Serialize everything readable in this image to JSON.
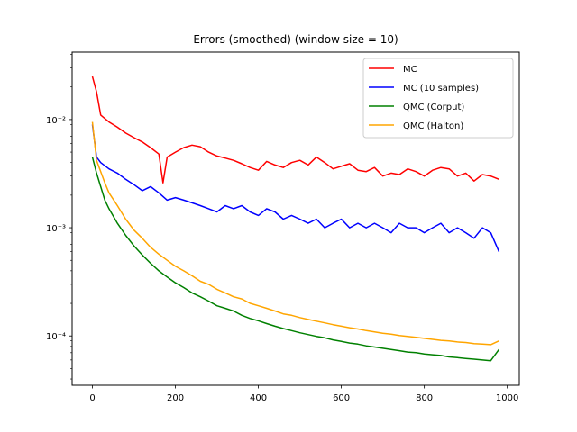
{
  "chart_data": {
    "type": "line",
    "title": "Errors (smoothed) (window size = 10)",
    "xlabel": "",
    "ylabel": "",
    "x_scale": "linear",
    "y_scale": "log",
    "xlim": [
      -49,
      1029
    ],
    "ylim": [
      3.5e-05,
      0.042
    ],
    "x_ticks": [
      0,
      200,
      400,
      600,
      800,
      1000
    ],
    "x_tick_labels": [
      "0",
      "200",
      "400",
      "600",
      "800",
      "1000"
    ],
    "y_ticks": [
      0.0001,
      0.001,
      0.01
    ],
    "y_tick_labels": [
      "10⁻⁴",
      "10⁻³",
      "10⁻²"
    ],
    "grid": false,
    "legend_position": "top-right",
    "series": [
      {
        "name": "MC",
        "color": "#ff0000",
        "x": [
          0,
          10,
          20,
          40,
          60,
          80,
          100,
          120,
          140,
          160,
          170,
          180,
          200,
          220,
          240,
          260,
          280,
          300,
          320,
          340,
          360,
          380,
          400,
          420,
          440,
          460,
          480,
          500,
          520,
          540,
          560,
          580,
          600,
          620,
          640,
          660,
          680,
          700,
          720,
          740,
          760,
          780,
          800,
          820,
          840,
          860,
          880,
          900,
          920,
          940,
          960,
          980
        ],
        "y": [
          0.025,
          0.018,
          0.011,
          0.0095,
          0.0085,
          0.0075,
          0.0068,
          0.0062,
          0.0055,
          0.0048,
          0.0026,
          0.0045,
          0.005,
          0.0055,
          0.0058,
          0.0056,
          0.005,
          0.0046,
          0.0044,
          0.0042,
          0.0039,
          0.0036,
          0.0034,
          0.0041,
          0.0038,
          0.0036,
          0.004,
          0.0042,
          0.0038,
          0.0045,
          0.004,
          0.0035,
          0.0037,
          0.0039,
          0.0034,
          0.0033,
          0.0036,
          0.003,
          0.0032,
          0.0031,
          0.0035,
          0.0033,
          0.003,
          0.0034,
          0.0036,
          0.0035,
          0.003,
          0.0032,
          0.0027,
          0.0031,
          0.003,
          0.0028
        ]
      },
      {
        "name": "MC (10 samples)",
        "color": "#0000ff",
        "x": [
          0,
          10,
          20,
          40,
          60,
          80,
          100,
          120,
          140,
          160,
          180,
          200,
          220,
          240,
          260,
          280,
          300,
          320,
          340,
          360,
          380,
          400,
          420,
          440,
          460,
          480,
          500,
          520,
          540,
          560,
          580,
          600,
          620,
          640,
          660,
          680,
          700,
          720,
          740,
          760,
          780,
          800,
          820,
          840,
          860,
          880,
          900,
          920,
          940,
          960,
          980
        ],
        "y": [
          0.009,
          0.0045,
          0.004,
          0.0035,
          0.0032,
          0.0028,
          0.0025,
          0.0022,
          0.0024,
          0.0021,
          0.0018,
          0.0019,
          0.0018,
          0.0017,
          0.0016,
          0.0015,
          0.0014,
          0.0016,
          0.0015,
          0.0016,
          0.0014,
          0.0013,
          0.0015,
          0.0014,
          0.0012,
          0.0013,
          0.0012,
          0.0011,
          0.0012,
          0.001,
          0.0011,
          0.0012,
          0.001,
          0.0011,
          0.001,
          0.0011,
          0.001,
          0.0009,
          0.0011,
          0.001,
          0.001,
          0.0009,
          0.001,
          0.0011,
          0.0009,
          0.001,
          0.0009,
          0.0008,
          0.001,
          0.0009,
          0.0006
        ]
      },
      {
        "name": "QMC (Corput)",
        "color": "#008000",
        "x": [
          0,
          10,
          20,
          30,
          40,
          60,
          80,
          100,
          120,
          140,
          160,
          180,
          200,
          220,
          240,
          260,
          280,
          300,
          320,
          340,
          360,
          380,
          400,
          420,
          440,
          460,
          480,
          500,
          520,
          540,
          560,
          580,
          600,
          620,
          640,
          660,
          680,
          700,
          720,
          740,
          760,
          780,
          800,
          820,
          840,
          860,
          880,
          900,
          920,
          940,
          960,
          980
        ],
        "y": [
          0.0045,
          0.0032,
          0.0024,
          0.0018,
          0.0015,
          0.0011,
          0.00085,
          0.00068,
          0.00056,
          0.00047,
          0.0004,
          0.00035,
          0.00031,
          0.00028,
          0.00025,
          0.00023,
          0.00021,
          0.00019,
          0.00018,
          0.00017,
          0.000155,
          0.000145,
          0.000138,
          0.00013,
          0.000123,
          0.000117,
          0.000112,
          0.000107,
          0.000103,
          9.9e-05,
          9.6e-05,
          9.2e-05,
          8.9e-05,
          8.6e-05,
          8.4e-05,
          8.1e-05,
          7.9e-05,
          7.7e-05,
          7.5e-05,
          7.3e-05,
          7.1e-05,
          7e-05,
          6.8e-05,
          6.7e-05,
          6.6e-05,
          6.4e-05,
          6.3e-05,
          6.2e-05,
          6.1e-05,
          6e-05,
          5.9e-05,
          7.5e-05
        ]
      },
      {
        "name": "QMC (Halton)",
        "color": "#ffa500",
        "x": [
          0,
          10,
          20,
          30,
          40,
          60,
          80,
          100,
          120,
          140,
          160,
          180,
          200,
          220,
          240,
          260,
          280,
          300,
          320,
          340,
          360,
          380,
          400,
          420,
          440,
          460,
          480,
          500,
          520,
          540,
          560,
          580,
          600,
          620,
          640,
          660,
          680,
          700,
          720,
          740,
          760,
          780,
          800,
          820,
          840,
          860,
          880,
          900,
          920,
          940,
          960,
          980
        ],
        "y": [
          0.0095,
          0.0042,
          0.0033,
          0.0026,
          0.0021,
          0.0016,
          0.0012,
          0.00095,
          0.0008,
          0.00066,
          0.00057,
          0.0005,
          0.00044,
          0.0004,
          0.00036,
          0.00032,
          0.0003,
          0.00027,
          0.00025,
          0.00023,
          0.00022,
          0.0002,
          0.00019,
          0.00018,
          0.00017,
          0.00016,
          0.000155,
          0.000148,
          0.000142,
          0.000137,
          0.000132,
          0.000127,
          0.000123,
          0.000119,
          0.000116,
          0.000112,
          0.000109,
          0.000106,
          0.000104,
          0.000101,
          9.9e-05,
          9.7e-05,
          9.5e-05,
          9.3e-05,
          9.1e-05,
          9e-05,
          8.8e-05,
          8.7e-05,
          8.5e-05,
          8.4e-05,
          8.3e-05,
          9e-05
        ]
      }
    ]
  }
}
